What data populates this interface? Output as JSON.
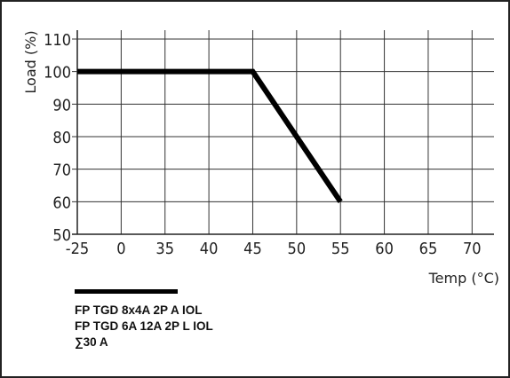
{
  "chart_data": {
    "type": "line",
    "title": "",
    "xlabel": "Temp (°C)",
    "ylabel": "Load (%)",
    "x_ticks": [
      "-25",
      "0",
      "35",
      "40",
      "45",
      "50",
      "55",
      "60",
      "65",
      "70"
    ],
    "y_ticks": [
      50,
      60,
      70,
      80,
      90,
      100,
      110
    ],
    "ylim": [
      50,
      110
    ],
    "grid": true,
    "series": [
      {
        "name": "",
        "x": [
          "-25",
          "45",
          "55"
        ],
        "y": [
          100,
          100,
          60
        ],
        "color": "#000000"
      }
    ],
    "legend": {
      "placement": "bottom-left",
      "lines": [
        "FP TGD 8x4A 2P A IOL",
        "FP TGD 6A 12A 2P L IOL",
        "∑30 A"
      ]
    }
  }
}
